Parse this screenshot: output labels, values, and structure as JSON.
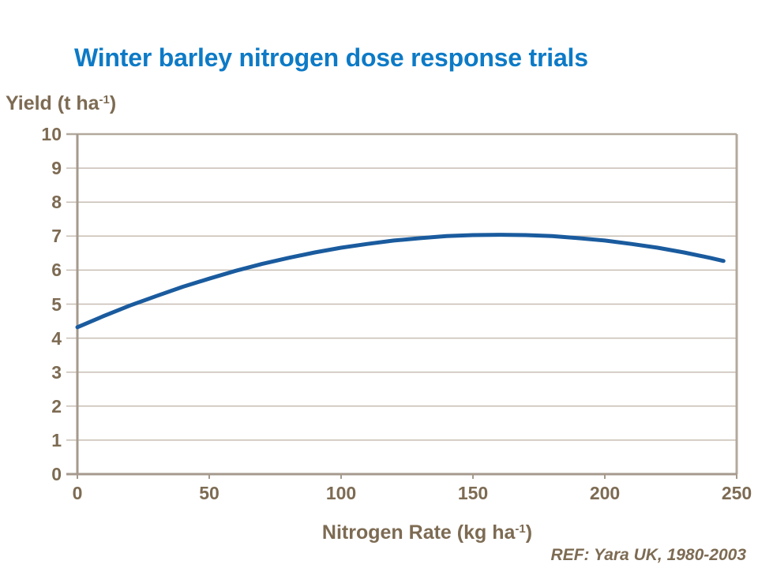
{
  "title": {
    "text": "Winter barley nitrogen dose response trials"
  },
  "footer": {
    "ref_text": "REF: Yara UK, 1980-2003"
  },
  "colors": {
    "background": "#ffffff",
    "title_blue": "#0d7ac6",
    "curve_blue": "#1a5b9e",
    "text_brown": "#7d6b53",
    "gridline": "#c7beb3",
    "frame": "#b3a99d",
    "axis": "#a59a8d"
  },
  "chart_data": {
    "type": "line",
    "title": "Winter barley nitrogen dose response trials",
    "xlabel": {
      "prefix": "Nitrogen Rate (kg ha",
      "sup": "-1",
      "suffix": ")"
    },
    "ylabel": {
      "prefix": "Yield (t ha",
      "sup": "-1",
      "suffix": ")"
    },
    "xlim": [
      0,
      250
    ],
    "ylim": [
      0,
      10
    ],
    "xticks": [
      0,
      50,
      100,
      150,
      200,
      250
    ],
    "yticks": [
      0,
      1,
      2,
      3,
      4,
      5,
      6,
      7,
      8,
      9,
      10
    ],
    "grid": true,
    "legend": "none",
    "annotation": "REF: Yara UK, 1980-2003",
    "series": [
      {
        "color": "#1a5b9e",
        "x": [
          0,
          10,
          20,
          30,
          40,
          50,
          60,
          70,
          80,
          90,
          100,
          110,
          120,
          130,
          140,
          150,
          160,
          170,
          180,
          190,
          200,
          210,
          220,
          230,
          240,
          245
        ],
        "y": [
          4.32,
          4.65,
          4.96,
          5.24,
          5.51,
          5.75,
          5.98,
          6.18,
          6.36,
          6.52,
          6.66,
          6.77,
          6.87,
          6.94,
          7.0,
          7.03,
          7.04,
          7.03,
          7.0,
          6.94,
          6.87,
          6.77,
          6.66,
          6.52,
          6.36,
          6.27
        ]
      }
    ]
  }
}
